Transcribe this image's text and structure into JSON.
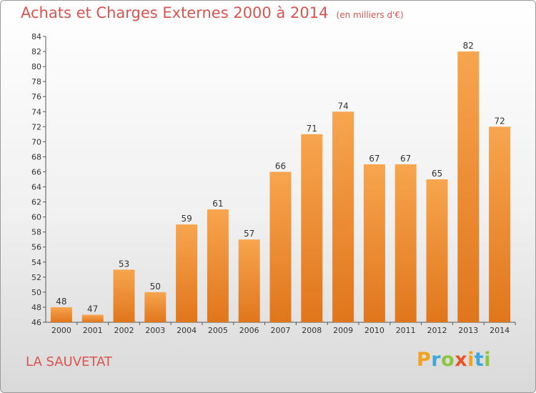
{
  "chart_data": {
    "type": "bar",
    "title": "Achats et Charges Externes 2000 à 2014",
    "subtitle": "(en milliers d'€)",
    "categories": [
      "2000",
      "2001",
      "2002",
      "2003",
      "2004",
      "2005",
      "2006",
      "2007",
      "2008",
      "2009",
      "2010",
      "2011",
      "2012",
      "2013",
      "2014"
    ],
    "values": [
      48,
      47,
      53,
      50,
      59,
      61,
      57,
      66,
      71,
      74,
      67,
      67,
      65,
      82,
      72
    ],
    "data_labels": [
      "48",
      "47",
      "53",
      "50",
      "59",
      "61",
      "57",
      "66",
      "71",
      "74",
      "67",
      "67",
      "65",
      "82",
      "72"
    ],
    "ylim": [
      46,
      84
    ],
    "yticks": [
      46,
      48,
      50,
      52,
      54,
      56,
      58,
      60,
      62,
      64,
      66,
      68,
      70,
      72,
      74,
      76,
      78,
      80,
      82,
      84
    ],
    "xlabel": "",
    "ylabel": "",
    "grid": false,
    "legend": "none",
    "bar_color_top": "#f7a54f",
    "bar_color_bottom": "#e0761c"
  },
  "footer": {
    "town": "LA SAUVETAT",
    "logo_letters": [
      "P",
      "r",
      "o",
      "x",
      "i",
      "t",
      "i"
    ],
    "logo_colors": [
      "#f2a31b",
      "#3ba7dd",
      "#8cc63f",
      "#e9532a",
      "#f2a31b",
      "#3ba7dd",
      "#8cc63f"
    ]
  },
  "colors": {
    "title": "#d9534f",
    "axis": "#555555"
  }
}
